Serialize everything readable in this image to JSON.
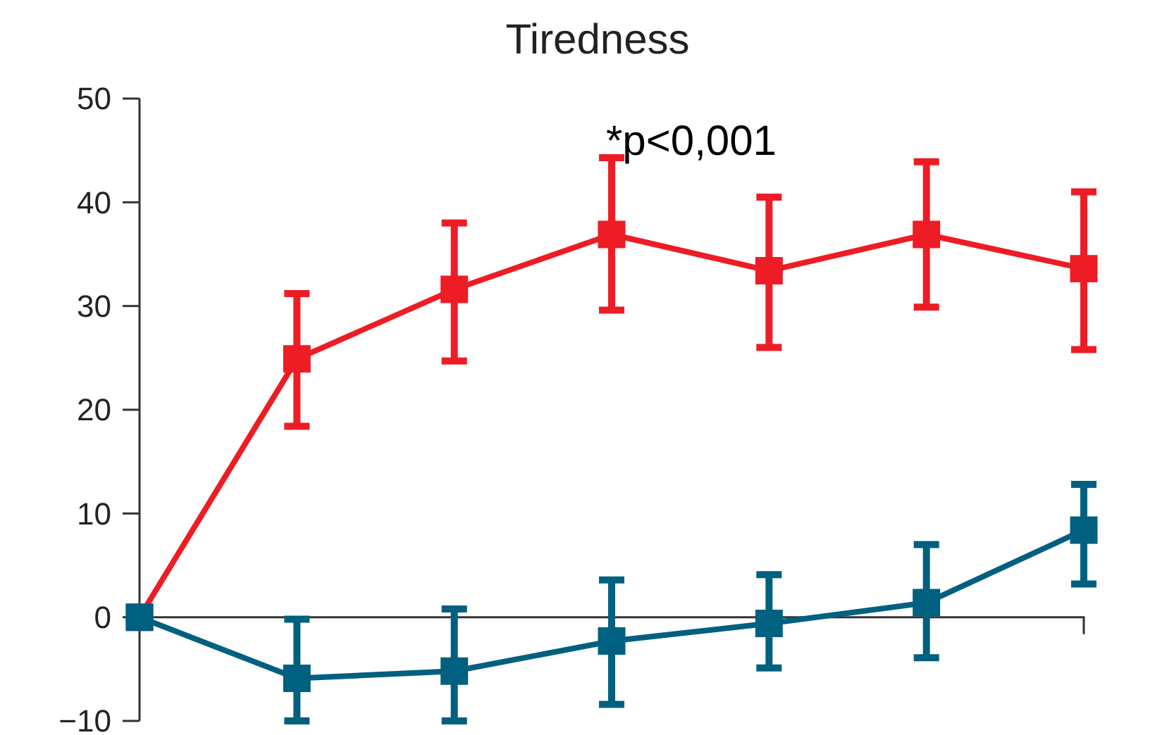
{
  "chart_data": {
    "type": "line",
    "title": "Tiredness",
    "categories": [
      null,
      null,
      null,
      null,
      null,
      null,
      null
    ],
    "series": [
      {
        "color": "#ee1c25",
        "values": [
          0,
          24.9,
          31.6,
          36.9,
          33.4,
          36.9,
          33.6
        ],
        "errors": [
          null,
          [
            18.4,
            31.2
          ],
          [
            24.7,
            38.0
          ],
          [
            29.6,
            44.3
          ],
          [
            26.0,
            40.5
          ],
          [
            29.9,
            43.9
          ],
          [
            25.8,
            41.0
          ]
        ]
      },
      {
        "color": "#00607f",
        "values": [
          0,
          -5.9,
          -5.2,
          -2.3,
          -0.6,
          1.4,
          8.4
        ],
        "errors": [
          null,
          [
            -10.0,
            -0.2
          ],
          [
            -10.0,
            0.8
          ],
          [
            -8.4,
            3.6
          ],
          [
            -4.9,
            4.1
          ],
          [
            -3.9,
            7.0
          ],
          [
            3.2,
            12.8
          ]
        ]
      }
    ],
    "ylim": [
      -10,
      50
    ],
    "yticks": [
      {
        "value": -10,
        "label": "−10"
      },
      0,
      10,
      20,
      30,
      40,
      50
    ],
    "ref_lines": [
      {
        "axis": "y",
        "value": 0,
        "color": "#333333"
      }
    ],
    "annotations": [
      "*p<0,001"
    ],
    "marker": "square",
    "line_style": "solid",
    "grid": false
  }
}
